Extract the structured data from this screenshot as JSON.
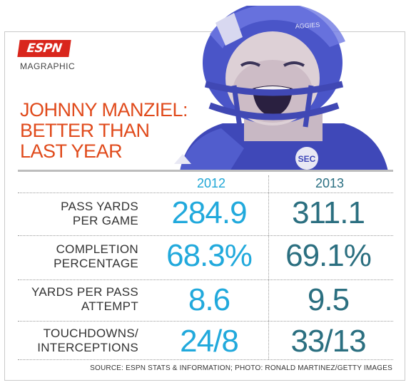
{
  "brand": {
    "logo": "ESPN",
    "section": "MAGRAPHIC"
  },
  "headline": {
    "line1": "JOHNNY MANZIEL:",
    "line2": "BETTER THAN",
    "line3": "LAST YEAR"
  },
  "photo": {
    "helmet_text": "AGGIES",
    "chest_logo": "SEC"
  },
  "table": {
    "columns": [
      "2012",
      "2013"
    ],
    "rows": [
      {
        "label_l1": "PASS YARDS",
        "label_l2": "PER GAME",
        "v2012": "284.9",
        "v2013": "311.1"
      },
      {
        "label_l1": "COMPLETION",
        "label_l2": "PERCENTAGE",
        "v2012": "68.3%",
        "v2013": "69.1%"
      },
      {
        "label_l1": "YARDS PER PASS",
        "label_l2": "ATTEMPT",
        "v2012": "8.6",
        "v2013": "9.5"
      },
      {
        "label_l1": "TOUCHDOWNS/",
        "label_l2": "INTERCEPTIONS",
        "v2012": "24/8",
        "v2013": "33/13"
      }
    ]
  },
  "source": "SOURCE: ESPN STATS & INFORMATION; PHOTO: RONALD MARTINEZ/GETTY IMAGES",
  "colors": {
    "accent": "#e04a1b",
    "year2012": "#21a9dc",
    "year2013": "#2b6f80",
    "espn_red": "#d9261c",
    "helmet": "#4a55c8"
  }
}
